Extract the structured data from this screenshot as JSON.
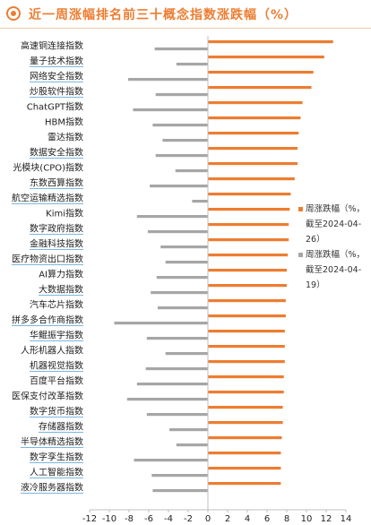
{
  "header": {
    "title": "近一周涨幅排名前三十概念指数涨跌幅（%）"
  },
  "chart_data": {
    "type": "bar",
    "orientation": "horizontal",
    "title": "近一周涨幅排名前三十概念指数涨跌幅（%）",
    "categories": [
      "高速铜连接指数",
      "量子技术指数",
      "网络安全指数",
      "炒股软件指数",
      "ChatGPT指数",
      "HBM指数",
      "雷达指数",
      "数据安全指数",
      "光模块(CPO)指数",
      "东数西算指数",
      "航空运输精选指数",
      "Kimi指数",
      "数字政府指数",
      "金融科技指数",
      "医疗物资出口指数",
      "AI算力指数",
      "大数据指数",
      "汽车芯片指数",
      "拼多多合作商指数",
      "华鲲振宇指数",
      "人形机器人指数",
      "机器视觉指数",
      "百度平台指数",
      "医保支付改革指数",
      "数字货币指数",
      "存储器指数",
      "半导体精选指数",
      "数字孪生指数",
      "人工智能指数",
      "液冷服务器指数"
    ],
    "underlined": [
      false,
      true,
      true,
      true,
      false,
      false,
      false,
      true,
      false,
      true,
      true,
      false,
      true,
      true,
      true,
      false,
      true,
      false,
      true,
      true,
      false,
      true,
      false,
      false,
      true,
      true,
      true,
      true,
      true,
      true
    ],
    "series": [
      {
        "name": "周涨跌幅（%，截至2024-04-26）",
        "color": "#ED7D31",
        "values": [
          12.7,
          11.8,
          10.7,
          10.5,
          9.6,
          9.4,
          9.2,
          9.1,
          9.1,
          8.8,
          8.4,
          8.3,
          8.2,
          8.2,
          8.1,
          8.0,
          8.0,
          7.9,
          7.9,
          7.8,
          7.8,
          7.8,
          7.7,
          7.7,
          7.6,
          7.6,
          7.5,
          7.4,
          7.4,
          7.4
        ]
      },
      {
        "name": "周涨跌幅（%，截至2024-04-19）",
        "color": "#A6A6A6",
        "values": [
          -5.4,
          -3.2,
          -8.1,
          -5.3,
          -7.6,
          -5.6,
          -4.6,
          -5.3,
          -3.3,
          -5.9,
          -1.6,
          -7.2,
          -6.1,
          -4.8,
          -4.3,
          -5.2,
          -5.8,
          -5.1,
          -9.5,
          -6.2,
          -4.3,
          -6.3,
          -7.2,
          -8.2,
          -6.2,
          -3.9,
          -3.2,
          -7.5,
          -5.7,
          -5.6
        ]
      }
    ],
    "x_ticks": [
      "-12",
      "-10",
      "-8",
      "-6",
      "-4",
      "-2",
      "0",
      "2",
      "4",
      "6",
      "8",
      "10",
      "12",
      "14"
    ],
    "xlim": [
      -12,
      14
    ],
    "legend": {
      "position": "right",
      "items": [
        {
          "line1": "周涨跌幅（%，",
          "line2": "截至2024-04-",
          "line3": "26）",
          "color": "#ED7D31"
        },
        {
          "line1": "周涨跌幅（%，",
          "line2": "截至2024-04-",
          "line3": "19）",
          "color": "#A6A6A6"
        }
      ]
    },
    "grid": false
  }
}
